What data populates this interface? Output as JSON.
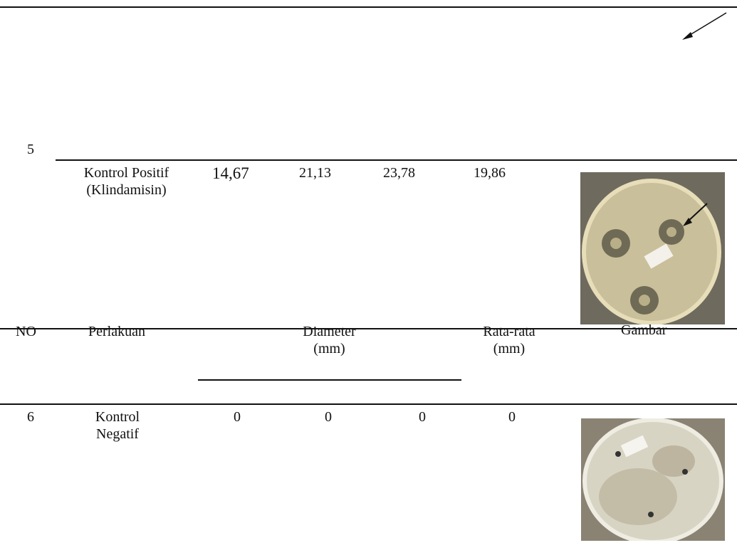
{
  "rows": [
    {
      "no": "5",
      "perlakuan": "Kontrol Positif (Klindamisin)",
      "values": [
        "14,67",
        "21,13",
        "23,78"
      ],
      "rata_rata": "19,86"
    },
    {
      "no": "6",
      "perlakuan": "Kontrol Negatif",
      "values": [
        "0",
        "0",
        "0"
      ],
      "rata_rata": "0"
    }
  ],
  "header": {
    "no": "NO",
    "perlakuan": "Perlakuan",
    "diameter": "Diameter (mm)",
    "rata_rata": "Rata-rata (mm)",
    "gambar": "Gambar"
  }
}
